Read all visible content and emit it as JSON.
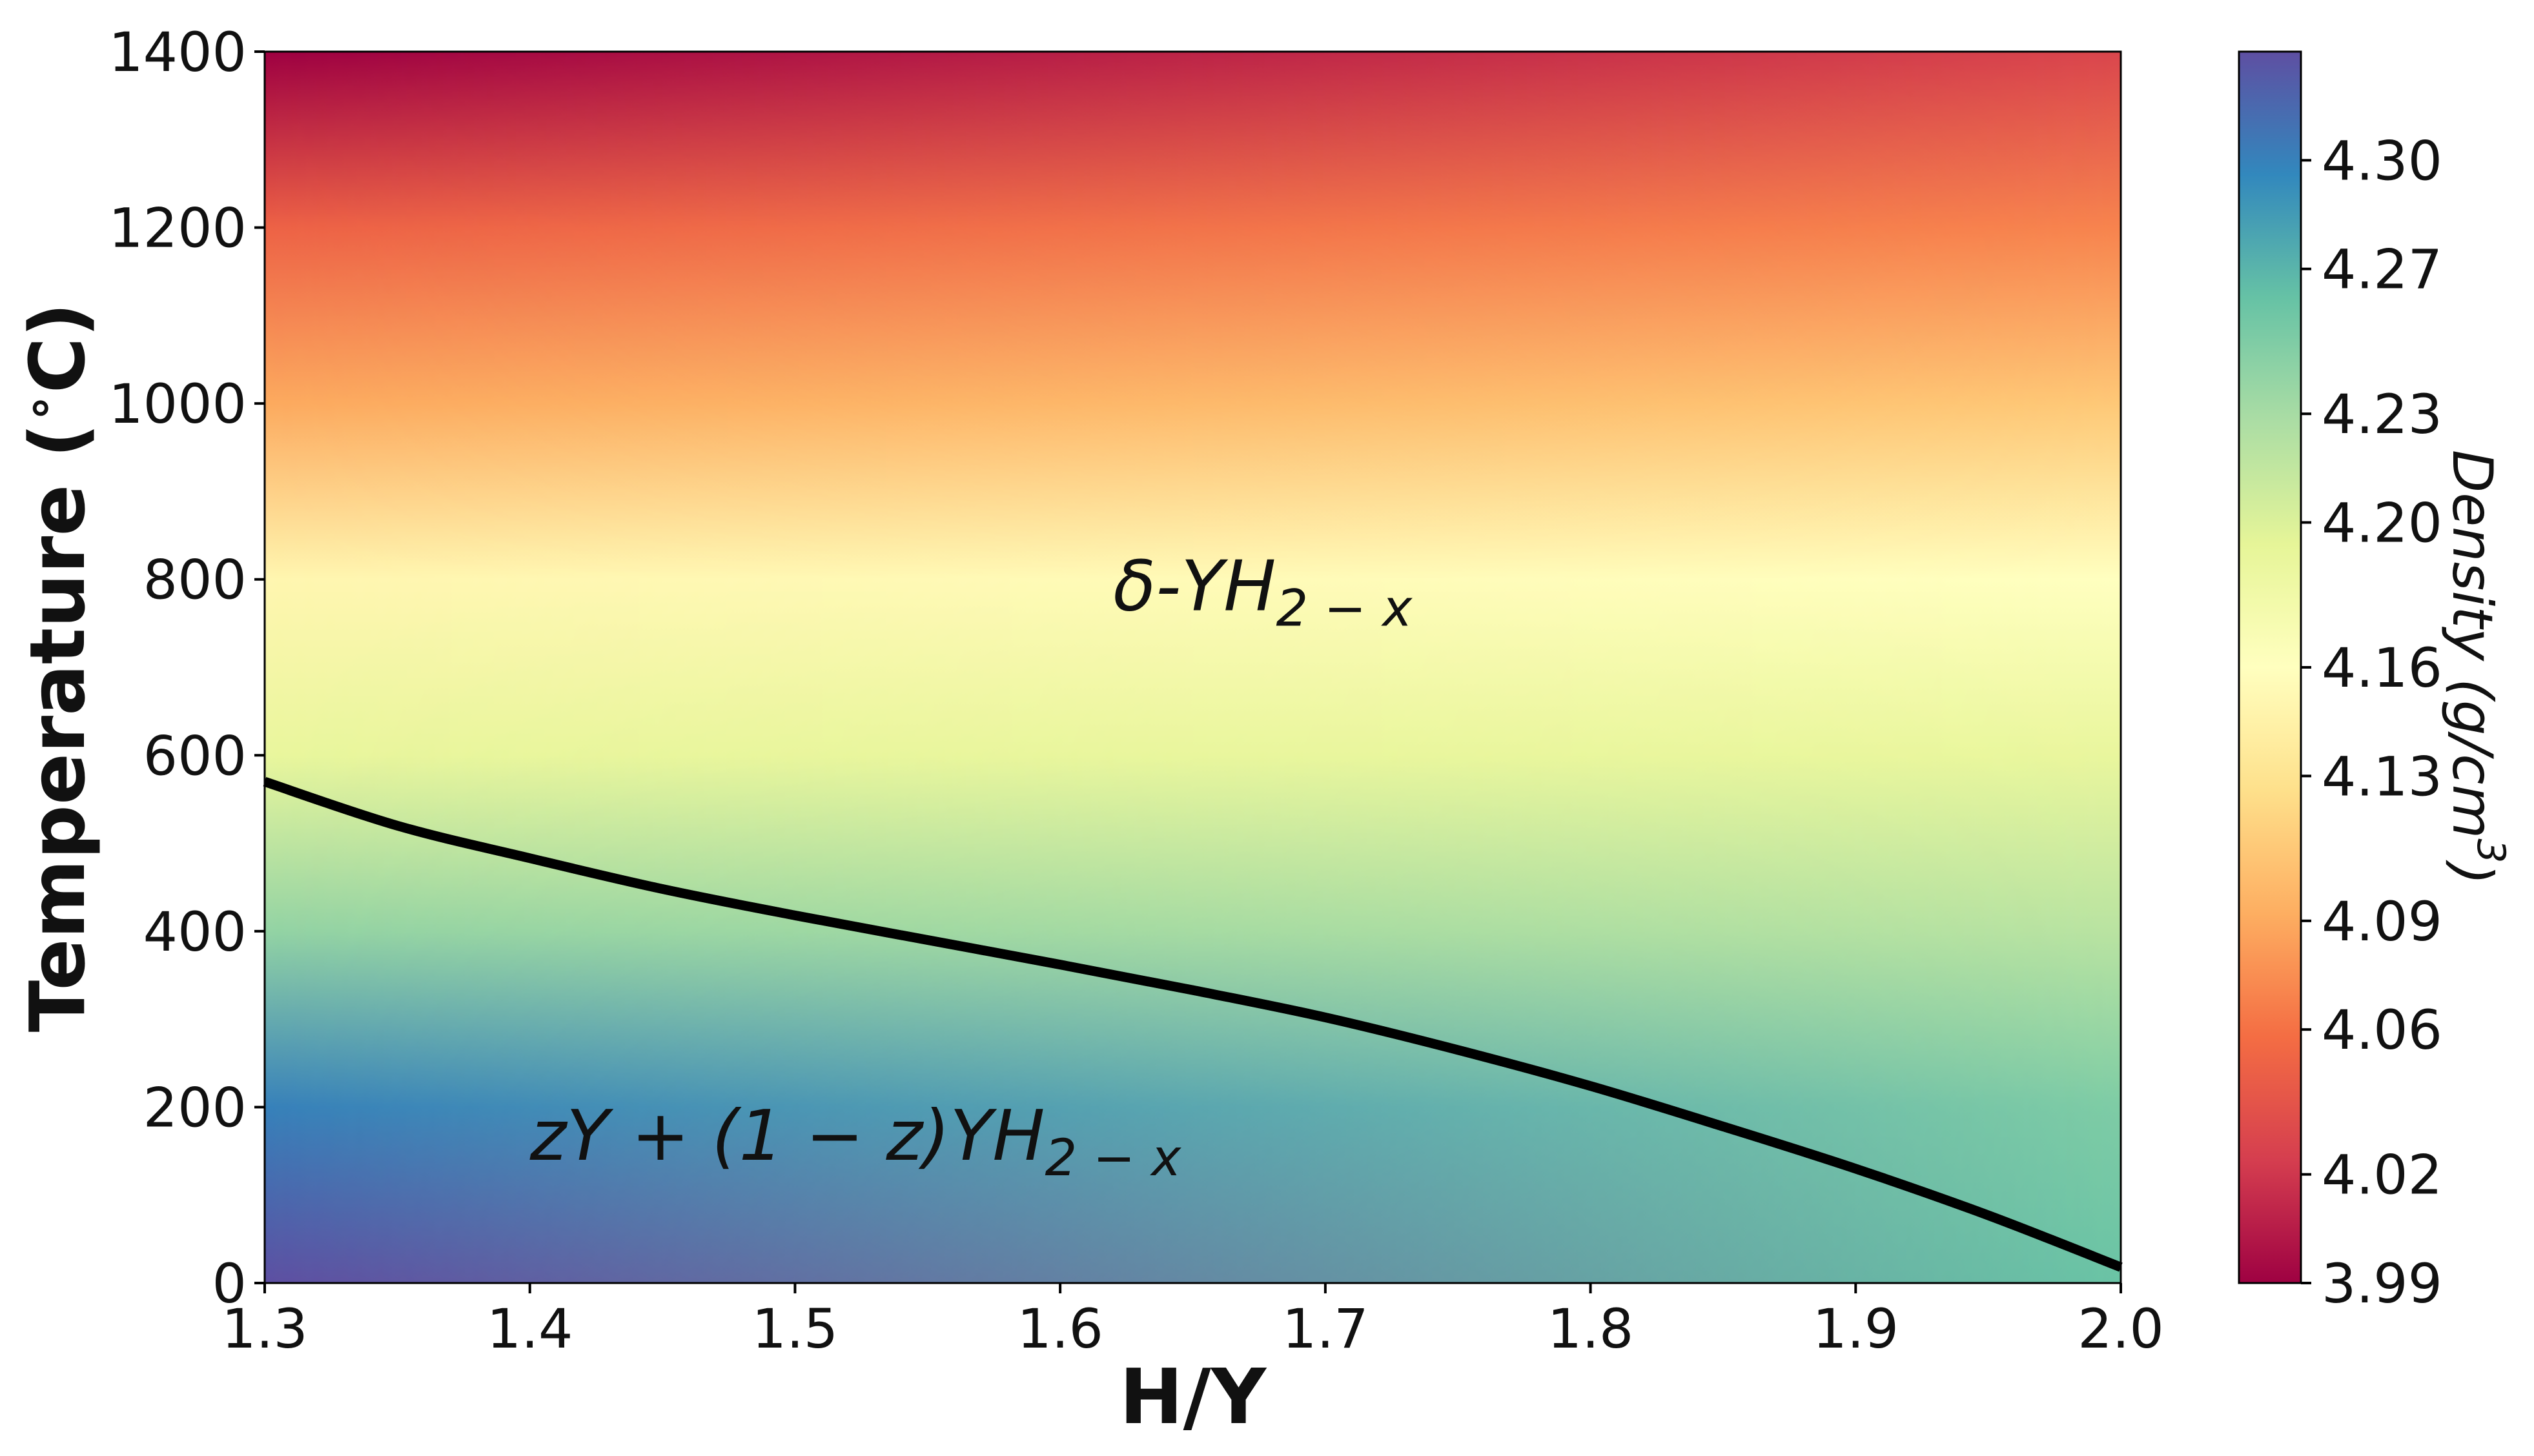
{
  "chart_data": {
    "type": "heatmap",
    "xlabel": "H/Y",
    "ylabel": "Temperature (°C)",
    "ylabel_parts": {
      "main": "Temperature (",
      "degree": "∘",
      "unit": "C)"
    },
    "xlim": [
      1.3,
      2.0
    ],
    "ylim": [
      0,
      1400
    ],
    "xticks": [
      "1.3",
      "1.4",
      "1.5",
      "1.6",
      "1.7",
      "1.8",
      "1.9",
      "2.0"
    ],
    "yticks": [
      "0",
      "200",
      "400",
      "600",
      "800",
      "1000",
      "1200",
      "1400"
    ],
    "xtick_values": [
      1.3,
      1.4,
      1.5,
      1.6,
      1.7,
      1.8,
      1.9,
      2.0
    ],
    "ytick_values": [
      0,
      200,
      400,
      600,
      800,
      1000,
      1200,
      1400
    ],
    "colorbar": {
      "label": "Density (g/cm³)",
      "label_parts": {
        "main": "Density (g/cm",
        "sup": "3",
        "end": ")"
      },
      "range": [
        3.99,
        4.33
      ],
      "colormap": "Spectral",
      "ticks": [
        "3.99",
        "4.02",
        "4.06",
        "4.09",
        "4.13",
        "4.16",
        "4.20",
        "4.23",
        "4.27",
        "4.30"
      ],
      "tick_values": [
        3.99,
        4.02,
        4.06,
        4.09,
        4.13,
        4.16,
        4.2,
        4.23,
        4.27,
        4.3
      ]
    },
    "density_field": {
      "x": [
        1.3,
        2.0
      ],
      "t": [
        0,
        200,
        400,
        600,
        800,
        1000,
        1200,
        1400
      ],
      "values_at_x_1_3": [
        4.33,
        4.3,
        4.24,
        4.19,
        4.15,
        4.09,
        4.05,
        3.99
      ],
      "values_at_x_2_0": [
        4.26,
        4.25,
        4.22,
        4.19,
        4.16,
        4.11,
        4.07,
        4.03
      ]
    },
    "phase_boundary": {
      "x": [
        1.3,
        1.35,
        1.4,
        1.45,
        1.5,
        1.55,
        1.6,
        1.65,
        1.7,
        1.75,
        1.8,
        1.85,
        1.9,
        1.95,
        2.0
      ],
      "y": [
        570,
        520,
        483,
        448,
        418,
        390,
        362,
        333,
        302,
        265,
        224,
        178,
        130,
        77,
        18
      ]
    },
    "annotations": [
      {
        "id": "upper",
        "main": "δ-YH",
        "sub": "2 − x",
        "x": 1.62,
        "y": 765
      },
      {
        "id": "lower",
        "main": "zY + (1 − z)YH",
        "sub": "2 − x",
        "x": 1.4,
        "y": 140
      }
    ]
  }
}
